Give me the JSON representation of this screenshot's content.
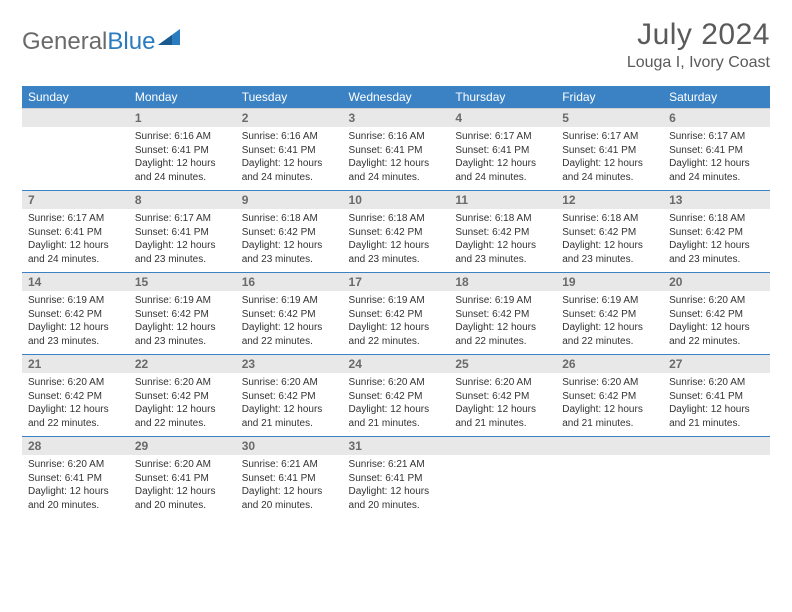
{
  "logo": {
    "text1": "General",
    "text2": "Blue"
  },
  "title": "July 2024",
  "location": "Louga I, Ivory Coast",
  "colors": {
    "header_bg": "#3b82c4",
    "header_text": "#ffffff",
    "daynum_bg": "#e8e8e8",
    "daynum_text": "#6a6a6a",
    "body_text": "#333333",
    "row_divider": "#3b82c4",
    "title_text": "#5a5a5a",
    "logo_gray": "#6a6a6a",
    "logo_blue": "#2b7bbf",
    "page_bg": "#ffffff"
  },
  "typography": {
    "title_fontsize": 30,
    "location_fontsize": 16,
    "dow_fontsize": 12,
    "daynum_fontsize": 12,
    "cell_fontsize": 10,
    "logo_fontsize": 24
  },
  "daysOfWeek": [
    "Sunday",
    "Monday",
    "Tuesday",
    "Wednesday",
    "Thursday",
    "Friday",
    "Saturday"
  ],
  "weeks": [
    [
      {
        "num": "",
        "lines": []
      },
      {
        "num": "1",
        "lines": [
          "Sunrise: 6:16 AM",
          "Sunset: 6:41 PM",
          "Daylight: 12 hours",
          "and 24 minutes."
        ]
      },
      {
        "num": "2",
        "lines": [
          "Sunrise: 6:16 AM",
          "Sunset: 6:41 PM",
          "Daylight: 12 hours",
          "and 24 minutes."
        ]
      },
      {
        "num": "3",
        "lines": [
          "Sunrise: 6:16 AM",
          "Sunset: 6:41 PM",
          "Daylight: 12 hours",
          "and 24 minutes."
        ]
      },
      {
        "num": "4",
        "lines": [
          "Sunrise: 6:17 AM",
          "Sunset: 6:41 PM",
          "Daylight: 12 hours",
          "and 24 minutes."
        ]
      },
      {
        "num": "5",
        "lines": [
          "Sunrise: 6:17 AM",
          "Sunset: 6:41 PM",
          "Daylight: 12 hours",
          "and 24 minutes."
        ]
      },
      {
        "num": "6",
        "lines": [
          "Sunrise: 6:17 AM",
          "Sunset: 6:41 PM",
          "Daylight: 12 hours",
          "and 24 minutes."
        ]
      }
    ],
    [
      {
        "num": "7",
        "lines": [
          "Sunrise: 6:17 AM",
          "Sunset: 6:41 PM",
          "Daylight: 12 hours",
          "and 24 minutes."
        ]
      },
      {
        "num": "8",
        "lines": [
          "Sunrise: 6:17 AM",
          "Sunset: 6:41 PM",
          "Daylight: 12 hours",
          "and 23 minutes."
        ]
      },
      {
        "num": "9",
        "lines": [
          "Sunrise: 6:18 AM",
          "Sunset: 6:42 PM",
          "Daylight: 12 hours",
          "and 23 minutes."
        ]
      },
      {
        "num": "10",
        "lines": [
          "Sunrise: 6:18 AM",
          "Sunset: 6:42 PM",
          "Daylight: 12 hours",
          "and 23 minutes."
        ]
      },
      {
        "num": "11",
        "lines": [
          "Sunrise: 6:18 AM",
          "Sunset: 6:42 PM",
          "Daylight: 12 hours",
          "and 23 minutes."
        ]
      },
      {
        "num": "12",
        "lines": [
          "Sunrise: 6:18 AM",
          "Sunset: 6:42 PM",
          "Daylight: 12 hours",
          "and 23 minutes."
        ]
      },
      {
        "num": "13",
        "lines": [
          "Sunrise: 6:18 AM",
          "Sunset: 6:42 PM",
          "Daylight: 12 hours",
          "and 23 minutes."
        ]
      }
    ],
    [
      {
        "num": "14",
        "lines": [
          "Sunrise: 6:19 AM",
          "Sunset: 6:42 PM",
          "Daylight: 12 hours",
          "and 23 minutes."
        ]
      },
      {
        "num": "15",
        "lines": [
          "Sunrise: 6:19 AM",
          "Sunset: 6:42 PM",
          "Daylight: 12 hours",
          "and 23 minutes."
        ]
      },
      {
        "num": "16",
        "lines": [
          "Sunrise: 6:19 AM",
          "Sunset: 6:42 PM",
          "Daylight: 12 hours",
          "and 22 minutes."
        ]
      },
      {
        "num": "17",
        "lines": [
          "Sunrise: 6:19 AM",
          "Sunset: 6:42 PM",
          "Daylight: 12 hours",
          "and 22 minutes."
        ]
      },
      {
        "num": "18",
        "lines": [
          "Sunrise: 6:19 AM",
          "Sunset: 6:42 PM",
          "Daylight: 12 hours",
          "and 22 minutes."
        ]
      },
      {
        "num": "19",
        "lines": [
          "Sunrise: 6:19 AM",
          "Sunset: 6:42 PM",
          "Daylight: 12 hours",
          "and 22 minutes."
        ]
      },
      {
        "num": "20",
        "lines": [
          "Sunrise: 6:20 AM",
          "Sunset: 6:42 PM",
          "Daylight: 12 hours",
          "and 22 minutes."
        ]
      }
    ],
    [
      {
        "num": "21",
        "lines": [
          "Sunrise: 6:20 AM",
          "Sunset: 6:42 PM",
          "Daylight: 12 hours",
          "and 22 minutes."
        ]
      },
      {
        "num": "22",
        "lines": [
          "Sunrise: 6:20 AM",
          "Sunset: 6:42 PM",
          "Daylight: 12 hours",
          "and 22 minutes."
        ]
      },
      {
        "num": "23",
        "lines": [
          "Sunrise: 6:20 AM",
          "Sunset: 6:42 PM",
          "Daylight: 12 hours",
          "and 21 minutes."
        ]
      },
      {
        "num": "24",
        "lines": [
          "Sunrise: 6:20 AM",
          "Sunset: 6:42 PM",
          "Daylight: 12 hours",
          "and 21 minutes."
        ]
      },
      {
        "num": "25",
        "lines": [
          "Sunrise: 6:20 AM",
          "Sunset: 6:42 PM",
          "Daylight: 12 hours",
          "and 21 minutes."
        ]
      },
      {
        "num": "26",
        "lines": [
          "Sunrise: 6:20 AM",
          "Sunset: 6:42 PM",
          "Daylight: 12 hours",
          "and 21 minutes."
        ]
      },
      {
        "num": "27",
        "lines": [
          "Sunrise: 6:20 AM",
          "Sunset: 6:41 PM",
          "Daylight: 12 hours",
          "and 21 minutes."
        ]
      }
    ],
    [
      {
        "num": "28",
        "lines": [
          "Sunrise: 6:20 AM",
          "Sunset: 6:41 PM",
          "Daylight: 12 hours",
          "and 20 minutes."
        ]
      },
      {
        "num": "29",
        "lines": [
          "Sunrise: 6:20 AM",
          "Sunset: 6:41 PM",
          "Daylight: 12 hours",
          "and 20 minutes."
        ]
      },
      {
        "num": "30",
        "lines": [
          "Sunrise: 6:21 AM",
          "Sunset: 6:41 PM",
          "Daylight: 12 hours",
          "and 20 minutes."
        ]
      },
      {
        "num": "31",
        "lines": [
          "Sunrise: 6:21 AM",
          "Sunset: 6:41 PM",
          "Daylight: 12 hours",
          "and 20 minutes."
        ]
      },
      {
        "num": "",
        "lines": []
      },
      {
        "num": "",
        "lines": []
      },
      {
        "num": "",
        "lines": []
      }
    ]
  ]
}
